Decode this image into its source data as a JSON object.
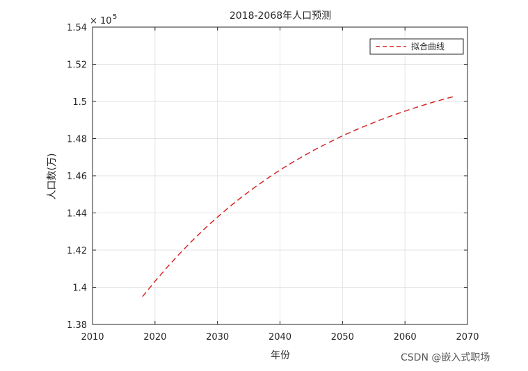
{
  "chart_data": {
    "type": "line",
    "title": "2018-2068年人口预测",
    "xlabel": "年份",
    "ylabel": "人口数(万)",
    "xlim": [
      2010,
      2070
    ],
    "ylim": [
      138000,
      154000
    ],
    "x_ticks": [
      "2010",
      "2020",
      "2030",
      "2040",
      "2050",
      "2060",
      "2070"
    ],
    "y_ticks": [
      "1.38",
      "1.4",
      "1.42",
      "1.44",
      "1.46",
      "1.48",
      "1.5",
      "1.52",
      "1.54"
    ],
    "y_tick_values": [
      138000,
      140000,
      142000,
      144000,
      146000,
      148000,
      150000,
      152000,
      154000
    ],
    "y_exponent": {
      "base": "× 10",
      "power": "5"
    },
    "grid": true,
    "legend_position": "top-right",
    "series": [
      {
        "name": "拟合曲线",
        "color": "#d62728",
        "style": "dashed",
        "x": [
          2018,
          2020,
          2022,
          2024,
          2026,
          2028,
          2030,
          2032,
          2034,
          2036,
          2038,
          2040,
          2042,
          2044,
          2046,
          2048,
          2050,
          2052,
          2054,
          2056,
          2058,
          2060,
          2062,
          2064,
          2066,
          2068
        ],
        "y": [
          139500,
          140320,
          141100,
          141830,
          142520,
          143170,
          143780,
          144350,
          144890,
          145390,
          145860,
          146310,
          146720,
          147110,
          147480,
          147820,
          148150,
          148450,
          148730,
          149000,
          149250,
          149480,
          149700,
          149910,
          150100,
          150280
        ]
      }
    ]
  },
  "watermark": "CSDN @嵌入式职场"
}
